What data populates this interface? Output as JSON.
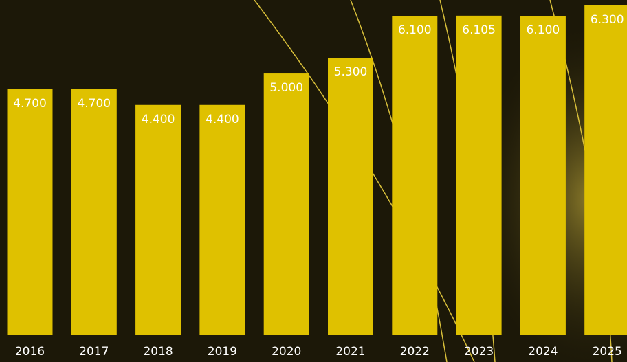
{
  "chart_data": {
    "type": "bar",
    "categories": [
      "2016",
      "2017",
      "2018",
      "2019",
      "2020",
      "2021",
      "2022",
      "2023",
      "2024",
      "2025"
    ],
    "values": [
      4700,
      4700,
      4400,
      4400,
      5000,
      5300,
      6100,
      6105,
      6100,
      6300
    ],
    "value_labels": [
      "4.700",
      "4.700",
      "4.400",
      "4.400",
      "5.000",
      "5.300",
      "6.100",
      "6.105",
      "6.100",
      "6.300"
    ],
    "color": "#dfc100",
    "ylim": [
      0,
      6300
    ]
  }
}
